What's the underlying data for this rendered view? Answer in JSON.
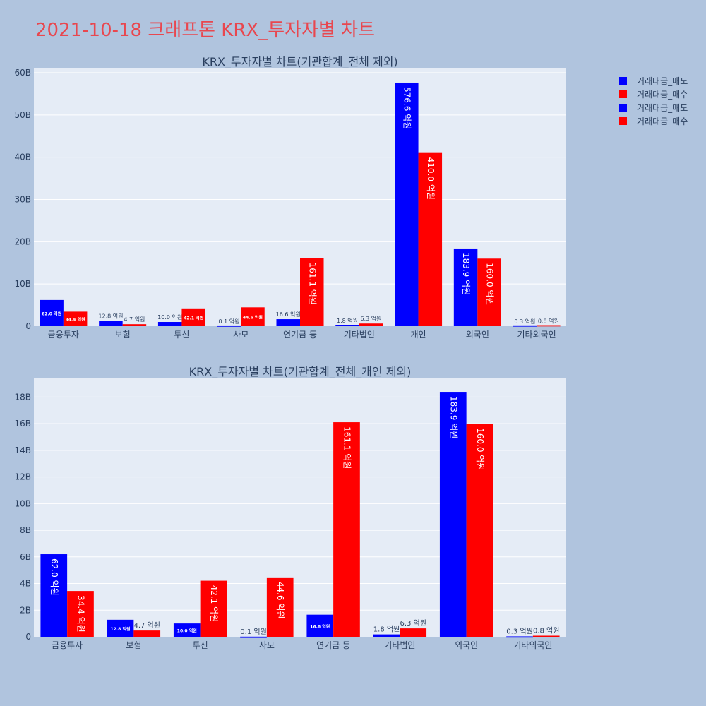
{
  "title": "2021-10-18 크래프톤 KRX_투자자별 차트",
  "legend": [
    {
      "name": "거래대금_매도",
      "color": "#0000ff"
    },
    {
      "name": "거래대금_매수",
      "color": "#ff0000"
    },
    {
      "name": "거래대금_매도",
      "color": "#0000ff"
    },
    {
      "name": "거래대금_매수",
      "color": "#ff0000"
    }
  ],
  "chart_data": [
    {
      "type": "bar",
      "title": "KRX_투자자별 차트(기관합계_전체 제외)",
      "categories": [
        "금융투자",
        "보험",
        "투신",
        "사모",
        "연기금 등",
        "기타법인",
        "개인",
        "외국인",
        "기타외국인"
      ],
      "series": [
        {
          "name": "거래대금_매도",
          "color": "#0000ff",
          "values": [
            6.2,
            1.28,
            1.0,
            0.01,
            1.66,
            0.18,
            57.66,
            18.39,
            0.03
          ],
          "labels": [
            "62.0 억원",
            "12.8 억원",
            "10.0 억원",
            "0.1 억원",
            "16.6 억원",
            "1.8 억원",
            "576.6 억원",
            "183.9 억원",
            "0.3 억원"
          ]
        },
        {
          "name": "거래대금_매수",
          "color": "#ff0000",
          "values": [
            3.44,
            0.47,
            4.21,
            4.46,
            16.11,
            0.63,
            41.0,
            16.0,
            0.08
          ],
          "labels": [
            "34.4 억원",
            "4.7 억원",
            "42.1 억원",
            "44.6 억원",
            "161.1 억원",
            "6.3 억원",
            "410.0 억원",
            "160.0 억원",
            "0.8 억원"
          ]
        }
      ],
      "yticks": [
        "0",
        "10B",
        "20B",
        "30B",
        "40B",
        "50B",
        "60B"
      ],
      "ylim": [
        0,
        61
      ],
      "grid": true,
      "legend_position": "top-right"
    },
    {
      "type": "bar",
      "title": "KRX_투자자별 차트(기관합계_전체_개인 제외)",
      "categories": [
        "금융투자",
        "보험",
        "투신",
        "사모",
        "연기금 등",
        "기타법인",
        "외국인",
        "기타외국인"
      ],
      "series": [
        {
          "name": "거래대금_매도",
          "color": "#0000ff",
          "values": [
            6.2,
            1.28,
            1.0,
            0.01,
            1.66,
            0.18,
            18.39,
            0.03
          ],
          "labels": [
            "62.0 억원",
            "12.8 억원",
            "10.0 억원",
            "0.1 억원",
            "16.6 억원",
            "1.8 억원",
            "183.9 억원",
            "0.3 억원"
          ]
        },
        {
          "name": "거래대금_매수",
          "color": "#ff0000",
          "values": [
            3.44,
            0.47,
            4.21,
            4.46,
            16.11,
            0.63,
            16.0,
            0.08
          ],
          "labels": [
            "34.4 억원",
            "4.7 억원",
            "42.1 억원",
            "44.6 억원",
            "161.1 억원",
            "6.3 억원",
            "160.0 억원",
            "0.8 억원"
          ]
        }
      ],
      "yticks": [
        "0",
        "2B",
        "4B",
        "6B",
        "8B",
        "10B",
        "12B",
        "14B",
        "16B",
        "18B"
      ],
      "ylim": [
        0,
        19.4
      ],
      "grid": true
    }
  ]
}
